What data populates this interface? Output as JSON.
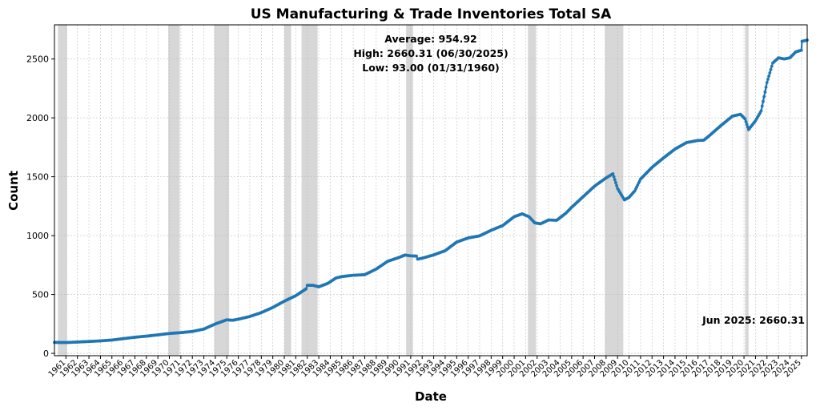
{
  "chart_data": {
    "type": "line",
    "title": "US Manufacturing & Trade Inventories Total SA",
    "xlabel": "Date",
    "ylabel": "Count",
    "stats": {
      "average": "Average: 954.92",
      "high": "High: 2660.31 (06/30/2025)",
      "low": "Low: 93.00 (01/31/1960)"
    },
    "last_label": "Jun 2025: 2660.31",
    "xlim": [
      1960.0,
      2025.5
    ],
    "ylim": [
      -20,
      2790
    ],
    "yticks": [
      0,
      500,
      1000,
      1500,
      2000,
      2500
    ],
    "xtick_labels": [
      "1961",
      "1962",
      "1963",
      "1964",
      "1965",
      "1966",
      "1967",
      "1968",
      "1969",
      "1970",
      "1971",
      "1972",
      "1973",
      "1974",
      "1975",
      "1976",
      "1977",
      "1978",
      "1979",
      "1980",
      "1981",
      "1982",
      "1983",
      "1984",
      "1985",
      "1986",
      "1987",
      "1988",
      "1989",
      "1990",
      "1991",
      "1992",
      "1993",
      "1994",
      "1995",
      "1996",
      "1997",
      "1998",
      "1999",
      "2000",
      "2001",
      "2002",
      "2003",
      "2004",
      "2005",
      "2006",
      "2007",
      "2008",
      "2009",
      "2010",
      "2011",
      "2012",
      "2013",
      "2014",
      "2015",
      "2016",
      "2017",
      "2018",
      "2019",
      "2020",
      "2021",
      "2022",
      "2023",
      "2024",
      "2025"
    ],
    "grid": true,
    "recessions": [
      [
        1960.3,
        1961.1
      ],
      [
        1969.9,
        1970.9
      ],
      [
        1973.9,
        1975.2
      ],
      [
        1980.0,
        1980.6
      ],
      [
        1981.5,
        1982.9
      ],
      [
        1990.6,
        1991.2
      ],
      [
        2001.2,
        2001.9
      ],
      [
        2007.9,
        2009.5
      ],
      [
        2020.1,
        2020.4
      ]
    ],
    "series": [
      {
        "color": "#1f77b4",
        "points": [
          [
            1960.0,
            93
          ],
          [
            1961.0,
            92
          ],
          [
            1962.0,
            96
          ],
          [
            1963.0,
            101
          ],
          [
            1964.0,
            106
          ],
          [
            1965.0,
            113
          ],
          [
            1966.0,
            125
          ],
          [
            1967.0,
            137
          ],
          [
            1968.0,
            146
          ],
          [
            1969.0,
            157
          ],
          [
            1970.0,
            169
          ],
          [
            1971.0,
            176
          ],
          [
            1972.0,
            186
          ],
          [
            1973.0,
            206
          ],
          [
            1974.0,
            250
          ],
          [
            1975.0,
            285
          ],
          [
            1975.5,
            281
          ],
          [
            1976.0,
            290
          ],
          [
            1977.0,
            313
          ],
          [
            1978.0,
            346
          ],
          [
            1979.0,
            390
          ],
          [
            1980.0,
            443
          ],
          [
            1981.0,
            490
          ],
          [
            1981.9,
            548
          ],
          [
            1982.0,
            578
          ],
          [
            1982.5,
            578
          ],
          [
            1983.0,
            565
          ],
          [
            1983.8,
            595
          ],
          [
            1984.5,
            640
          ],
          [
            1985.0,
            652
          ],
          [
            1986.0,
            663
          ],
          [
            1987.0,
            668
          ],
          [
            1988.0,
            716
          ],
          [
            1989.0,
            782
          ],
          [
            1990.0,
            815
          ],
          [
            1990.5,
            835
          ],
          [
            1991.0,
            828
          ],
          [
            1991.5,
            826
          ],
          [
            1991.6,
            800
          ],
          [
            1992.0,
            808
          ],
          [
            1993.0,
            836
          ],
          [
            1994.0,
            872
          ],
          [
            1995.0,
            945
          ],
          [
            1996.0,
            980
          ],
          [
            1997.0,
            998
          ],
          [
            1998.0,
            1045
          ],
          [
            1999.0,
            1085
          ],
          [
            2000.0,
            1160
          ],
          [
            2000.7,
            1185
          ],
          [
            2001.3,
            1160
          ],
          [
            2001.8,
            1108
          ],
          [
            2002.3,
            1100
          ],
          [
            2003.0,
            1133
          ],
          [
            2003.7,
            1130
          ],
          [
            2004.5,
            1190
          ],
          [
            2005.0,
            1240
          ],
          [
            2006.0,
            1330
          ],
          [
            2007.0,
            1420
          ],
          [
            2008.0,
            1490
          ],
          [
            2008.6,
            1525
          ],
          [
            2009.0,
            1400
          ],
          [
            2009.6,
            1303
          ],
          [
            2010.0,
            1325
          ],
          [
            2010.5,
            1380
          ],
          [
            2011.0,
            1480
          ],
          [
            2012.0,
            1580
          ],
          [
            2013.0,
            1660
          ],
          [
            2014.0,
            1735
          ],
          [
            2015.0,
            1790
          ],
          [
            2016.0,
            1808
          ],
          [
            2016.5,
            1810
          ],
          [
            2017.0,
            1850
          ],
          [
            2018.0,
            1935
          ],
          [
            2019.0,
            2015
          ],
          [
            2019.7,
            2030
          ],
          [
            2020.1,
            1990
          ],
          [
            2020.4,
            1900
          ],
          [
            2021.0,
            1975
          ],
          [
            2021.5,
            2060
          ],
          [
            2022.0,
            2300
          ],
          [
            2022.5,
            2465
          ],
          [
            2023.0,
            2510
          ],
          [
            2023.5,
            2500
          ],
          [
            2024.0,
            2510
          ],
          [
            2024.5,
            2560
          ],
          [
            2025.0,
            2575
          ],
          [
            2025.05,
            2650
          ],
          [
            2025.5,
            2660.31
          ]
        ]
      }
    ]
  }
}
